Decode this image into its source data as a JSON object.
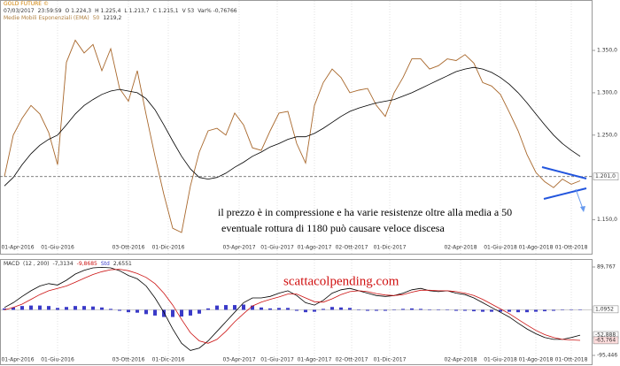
{
  "chart_data": [
    {
      "type": "line",
      "title": "GOLD FUTURE ©",
      "info": [
        "07/03/2017",
        "23:59:59",
        "O 1.224,3",
        "H 1.225,4",
        "L 1.213,7",
        "C 1.215,1",
        "V 53",
        "Var% -0,76766"
      ],
      "indicator_label": "Medie Mobili Esponenziali (EMA)",
      "annotations": [
        "il prezzo è in compressione e ha varie resistenze oltre alla media a 50",
        "eventuale rottura di 1180 può causare veloce discesa"
      ],
      "xlim": [
        -0.5,
        66.3
      ],
      "xticks": [
        {
          "value": 1.5,
          "label": "01-Apr-2016"
        },
        {
          "value": 6,
          "label": "01-Giu-2016"
        },
        {
          "value": 14,
          "label": "03-Ott-2016"
        },
        {
          "value": 18.5,
          "label": "01-Dic-2016"
        },
        {
          "value": 26.5,
          "label": "03-Apr-2017"
        },
        {
          "value": 30.8,
          "label": "01-Giu-2017"
        },
        {
          "value": 35,
          "label": "01-Ago-2017"
        },
        {
          "value": 39.2,
          "label": "02-Ott-2017"
        },
        {
          "value": 43.5,
          "label": "01-Dic-2017"
        },
        {
          "value": 51.5,
          "label": "02-Apr-2018"
        },
        {
          "value": 56,
          "label": "01-Giu-2018"
        },
        {
          "value": 60,
          "label": "01-Ago-2018"
        },
        {
          "value": 64,
          "label": "01-Ott-2018"
        }
      ],
      "ylim": [
        1112,
        1397
      ],
      "yticks": [
        {
          "value": 1350,
          "label": "1.350,0"
        },
        {
          "value": 1300,
          "label": "1.300,0"
        },
        {
          "value": 1250,
          "label": "1.250,0"
        },
        {
          "value": 1150,
          "label": "1.150,0"
        }
      ],
      "markers": [
        {
          "value": 1201,
          "label": "1.201,0",
          "color": "#ffffff",
          "dashed": true
        }
      ],
      "series": [
        {
          "kind": "line",
          "color": "#a8672b",
          "values": [
            1201,
            1250,
            1270,
            1285,
            1275,
            1253,
            1215,
            1336,
            1362,
            1347,
            1357,
            1326,
            1352,
            1305,
            1290,
            1326,
            1274,
            1225,
            1180,
            1140,
            1135,
            1190,
            1230,
            1255,
            1258,
            1250,
            1276,
            1262,
            1235,
            1232,
            1255,
            1276,
            1278,
            1240,
            1217,
            1285,
            1312,
            1328,
            1318,
            1300,
            1303,
            1305,
            1285,
            1272,
            1300,
            1318,
            1340,
            1340,
            1328,
            1332,
            1340,
            1338,
            1345,
            1335,
            1312,
            1308,
            1298,
            1277,
            1255,
            1227,
            1206,
            1195,
            1188,
            1198,
            1192,
            1196
          ]
        },
        {
          "kind": "line",
          "name": "50",
          "value_label": "1219,2",
          "color": "#000000",
          "values": [
            1190,
            1200,
            1215,
            1228,
            1238,
            1245,
            1250,
            1262,
            1275,
            1285,
            1292,
            1298,
            1302,
            1304,
            1302,
            1300,
            1293,
            1280,
            1262,
            1243,
            1225,
            1210,
            1200,
            1198,
            1200,
            1205,
            1212,
            1218,
            1225,
            1230,
            1236,
            1240,
            1245,
            1248,
            1248,
            1252,
            1258,
            1265,
            1272,
            1278,
            1282,
            1285,
            1288,
            1290,
            1292,
            1296,
            1300,
            1305,
            1310,
            1315,
            1320,
            1325,
            1328,
            1330,
            1328,
            1324,
            1318,
            1310,
            1300,
            1288,
            1275,
            1262,
            1250,
            1240,
            1232,
            1225
          ]
        }
      ]
    },
    {
      "type": "line",
      "title": "MACD",
      "params": "(12 , 200)",
      "watermark": "scattacolpending.com",
      "xlim": [
        -0.5,
        66.3
      ],
      "xticks": [
        {
          "value": 1.5,
          "label": "01-Apr-2016"
        },
        {
          "value": 6,
          "label": "01-Giu-2016"
        },
        {
          "value": 14,
          "label": "03-Ott-2016"
        },
        {
          "value": 18.5,
          "label": "01-Dic-2016"
        },
        {
          "value": 26.5,
          "label": "03-Apr-2017"
        },
        {
          "value": 30.8,
          "label": "01-Giu-2017"
        },
        {
          "value": 35,
          "label": "01-Ago-2017"
        },
        {
          "value": 39.2,
          "label": "02-Ott-2017"
        },
        {
          "value": 43.5,
          "label": "01-Dic-2017"
        },
        {
          "value": 51.5,
          "label": "02-Apr-2018"
        },
        {
          "value": 56,
          "label": "01-Giu-2018"
        },
        {
          "value": 60,
          "label": "01-Ago-2018"
        },
        {
          "value": 64,
          "label": "01-Ott-2018"
        }
      ],
      "ylim": [
        -95.446,
        89.767
      ],
      "yticks": [
        {
          "value": 89.767,
          "label": "89,767"
        },
        {
          "value": -95.446,
          "label": "-95,446"
        }
      ],
      "markers": [
        {
          "value": 1.0952,
          "label": "1,0952",
          "color": "#ffffff"
        },
        {
          "value": -52.888,
          "label": "-52,888",
          "color": "#ffffff"
        },
        {
          "value": -63.764,
          "label": "-63,764",
          "color": "#ffdddd"
        }
      ],
      "series": [
        {
          "kind": "bar",
          "name": "Std",
          "value_label": "2,6551",
          "color": "#3a3ac8",
          "values": [
            3,
            5,
            8,
            9,
            9,
            8,
            4,
            6,
            8,
            8,
            7,
            5,
            2,
            -2,
            -5,
            -6,
            -9,
            -12,
            -15,
            -15,
            -14,
            -12,
            -8,
            3,
            9,
            10,
            10,
            11,
            9,
            5,
            3,
            4,
            4,
            -2,
            -5,
            -4,
            2,
            6,
            5,
            4,
            0,
            -2,
            -2,
            -2,
            0,
            2,
            3,
            2,
            -1,
            -1,
            0,
            -2,
            -2,
            -3,
            -4,
            -4,
            -4,
            -4,
            -5,
            -5,
            -4,
            -3,
            -2,
            0,
            1,
            1
          ]
        },
        {
          "kind": "line",
          "value_label": "-7,3134",
          "color": "#000000",
          "values": [
            5,
            15,
            28,
            40,
            50,
            55,
            52,
            62,
            75,
            83,
            88,
            89,
            88,
            82,
            72,
            65,
            50,
            25,
            -5,
            -40,
            -70,
            -85,
            -80,
            -65,
            -45,
            -25,
            -5,
            15,
            25,
            25,
            28,
            35,
            40,
            30,
            15,
            10,
            20,
            35,
            42,
            45,
            40,
            35,
            30,
            28,
            30,
            35,
            42,
            45,
            40,
            38,
            40,
            35,
            32,
            25,
            15,
            5,
            -5,
            -15,
            -28,
            -40,
            -50,
            -58,
            -62,
            -62,
            -58,
            -53
          ]
        },
        {
          "kind": "line",
          "value_label": "-9,8685",
          "color": "#cc1111",
          "values": [
            0,
            5,
            12,
            22,
            32,
            40,
            45,
            50,
            58,
            66,
            74,
            80,
            84,
            85,
            82,
            76,
            68,
            55,
            35,
            10,
            -20,
            -48,
            -65,
            -70,
            -62,
            -45,
            -25,
            -8,
            8,
            16,
            22,
            27,
            33,
            33,
            25,
            17,
            16,
            23,
            32,
            38,
            40,
            38,
            34,
            31,
            30,
            32,
            37,
            41,
            41,
            40,
            40,
            38,
            35,
            30,
            22,
            12,
            2,
            -8,
            -20,
            -32,
            -43,
            -52,
            -58,
            -62,
            -63,
            -64
          ]
        }
      ]
    }
  ]
}
